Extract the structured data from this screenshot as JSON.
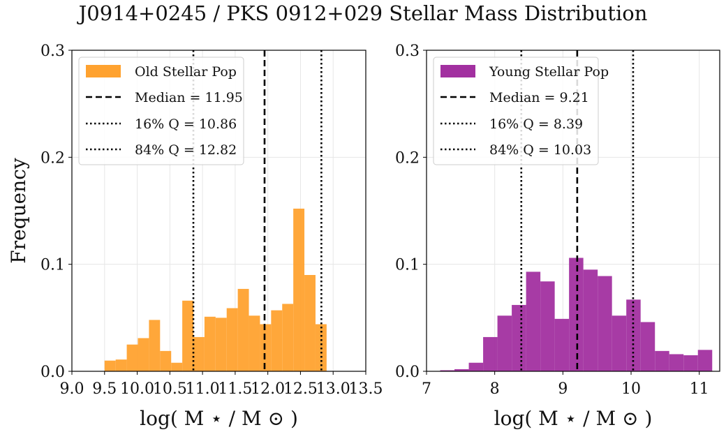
{
  "title": "J0914+0245 / PKS 0912+029 Stellar Mass Distribution",
  "chart_data": [
    {
      "type": "bar",
      "xlabel": "log( M ⋆ / M ⊙ )",
      "ylabel": "Frequency",
      "xlim": [
        9.0,
        13.5
      ],
      "ylim": [
        0.0,
        0.3
      ],
      "xticks": [
        "9.0",
        "9.5",
        "10.0",
        "10.5",
        "11.0",
        "11.5",
        "12.0",
        "12.5",
        "13.0",
        "13.5"
      ],
      "xtick_values": [
        9.0,
        9.5,
        10.0,
        10.5,
        11.0,
        11.5,
        12.0,
        12.5,
        13.0,
        13.5
      ],
      "yticks": [
        "0.0",
        "0.1",
        "0.2",
        "0.3"
      ],
      "ytick_values": [
        0.0,
        0.1,
        0.2,
        0.3
      ],
      "grid": true,
      "legend_position": "top-left",
      "bar_color": "#ffa22f",
      "bin_edges": [
        9.5,
        9.67,
        9.84,
        10.01,
        10.18,
        10.35,
        10.52,
        10.69,
        10.86,
        11.03,
        11.2,
        11.37,
        11.54,
        11.71,
        11.88,
        12.05,
        12.22,
        12.39,
        12.56,
        12.73,
        12.9,
        13.07
      ],
      "values": [
        0.01,
        0.011,
        0.025,
        0.031,
        0.048,
        0.019,
        0.008,
        0.066,
        0.032,
        0.051,
        0.05,
        0.059,
        0.077,
        0.052,
        0.044,
        0.057,
        0.063,
        0.152,
        0.09,
        0.044,
        0.0
      ],
      "lines": [
        {
          "x": 11.95,
          "style": "dashed"
        },
        {
          "x": 10.86,
          "style": "dotted"
        },
        {
          "x": 12.82,
          "style": "dotted"
        }
      ],
      "legend": [
        "Old Stellar Pop",
        "Median = 11.95",
        "16% Q = 10.86",
        "84% Q = 12.82"
      ]
    },
    {
      "type": "bar",
      "xlabel": "log( M ⋆ / M ⊙ )",
      "ylabel": "",
      "xlim": [
        7.0,
        11.3
      ],
      "ylim": [
        0.0,
        0.3
      ],
      "xticks": [
        "7",
        "8",
        "9",
        "10",
        "11"
      ],
      "xtick_values": [
        7,
        8,
        9,
        10,
        11
      ],
      "yticks": [
        "0.0",
        "0.1",
        "0.2",
        "0.3"
      ],
      "ytick_values": [
        0.0,
        0.1,
        0.2,
        0.3
      ],
      "grid": true,
      "legend_position": "top-left",
      "bar_color": "#a230a0",
      "bin_edges": [
        7.2,
        7.41,
        7.62,
        7.83,
        8.04,
        8.25,
        8.46,
        8.67,
        8.88,
        9.09,
        9.3,
        9.51,
        9.72,
        9.93,
        10.14,
        10.35,
        10.56,
        10.77,
        10.98,
        11.19
      ],
      "values": [
        0.001,
        0.002,
        0.008,
        0.032,
        0.052,
        0.062,
        0.093,
        0.084,
        0.049,
        0.106,
        0.095,
        0.089,
        0.052,
        0.067,
        0.046,
        0.019,
        0.016,
        0.015,
        0.02
      ],
      "lines": [
        {
          "x": 9.21,
          "style": "dashed"
        },
        {
          "x": 8.39,
          "style": "dotted"
        },
        {
          "x": 10.03,
          "style": "dotted"
        }
      ],
      "legend": [
        "Young Stellar Pop",
        "Median = 9.21",
        "16% Q = 8.39",
        "84% Q = 10.03"
      ]
    }
  ]
}
